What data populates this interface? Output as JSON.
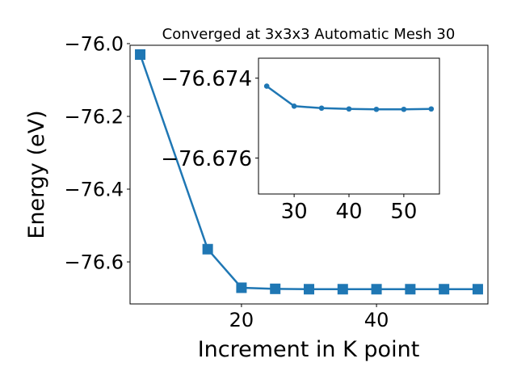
{
  "chart_data": [
    {
      "type": "line",
      "title": "Converged at 3x3x3 Automatic Mesh 30",
      "xlabel": "Increment in K point",
      "ylabel": "Energy (eV)",
      "x": [
        5,
        15,
        20,
        25,
        30,
        35,
        40,
        45,
        50,
        55
      ],
      "series": [
        {
          "values": [
            -76.03,
            -76.565,
            -76.671,
            -76.674,
            -76.675,
            -76.675,
            -76.675,
            -76.675,
            -76.675,
            -76.675
          ]
        }
      ],
      "xticks": [
        "20",
        "40"
      ],
      "yticks": [
        "−76.0",
        "−76.2",
        "−76.4",
        "−76.6"
      ],
      "xlim": [
        3.5,
        56.5
      ],
      "ylim": [
        -76.7155,
        -76.0045
      ],
      "marker": "square",
      "color": "#1f77b4",
      "grid": false
    },
    {
      "type": "line",
      "x": [
        25,
        30,
        35,
        40,
        45,
        50,
        55
      ],
      "series": [
        {
          "values": [
            -76.6742,
            -76.6747,
            -76.67475,
            -76.67477,
            -76.67478,
            -76.67478,
            -76.67477
          ]
        }
      ],
      "xticks": [
        "30",
        "40",
        "50"
      ],
      "yticks": [
        "−76.674",
        "−76.676"
      ],
      "xlim": [
        23.5,
        56.5
      ],
      "ylim": [
        -76.6769,
        -76.6735
      ],
      "marker": "circle",
      "color": "#1f77b4",
      "grid": false
    }
  ]
}
